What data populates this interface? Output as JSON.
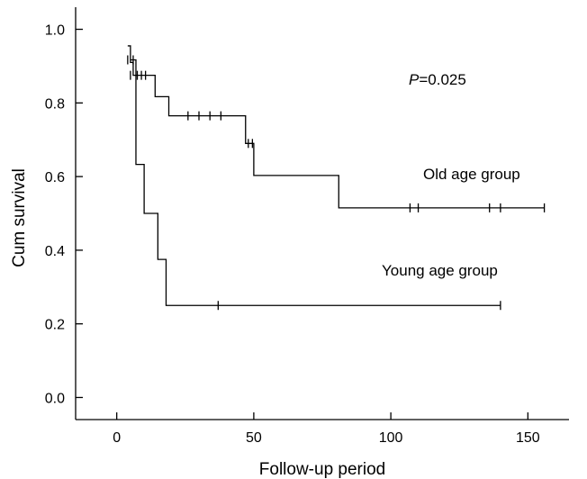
{
  "chart_data": {
    "type": "line",
    "subtype": "kaplan-meier-step",
    "xlabel": "Follow-up period",
    "ylabel": "Cum survival",
    "xlim": [
      -15,
      165
    ],
    "ylim": [
      -0.06,
      1.06
    ],
    "xticks": [
      0,
      50,
      100,
      150
    ],
    "xtick_labels": [
      "0",
      "50",
      "100",
      "150"
    ],
    "yticks": [
      0.0,
      0.2,
      0.4,
      0.6,
      0.8,
      1.0
    ],
    "ytick_labels": [
      "0.0",
      "0.2",
      "0.4",
      "0.6",
      "0.8",
      "1.0"
    ],
    "grid": false,
    "annotations": {
      "p_letter": "P",
      "p_rest": "=0.025",
      "old_label": "Old age group",
      "young_label": "Young age group"
    },
    "series": [
      {
        "name": "Old age group",
        "steps": [
          [
            4,
            0.955
          ],
          [
            5,
            0.91
          ],
          [
            6,
            0.875
          ],
          [
            14,
            0.817
          ],
          [
            19,
            0.765
          ],
          [
            47,
            0.69
          ],
          [
            50,
            0.603
          ],
          [
            81,
            0.515
          ],
          [
            156,
            0.515
          ]
        ],
        "censored": [
          [
            4,
            0.917
          ],
          [
            5,
            0.875
          ],
          [
            7.5,
            0.875
          ],
          [
            9,
            0.875
          ],
          [
            10.5,
            0.875
          ],
          [
            26,
            0.765
          ],
          [
            30,
            0.765
          ],
          [
            34,
            0.765
          ],
          [
            38,
            0.765
          ],
          [
            48,
            0.69
          ],
          [
            49.5,
            0.69
          ],
          [
            107,
            0.515
          ],
          [
            110,
            0.515
          ],
          [
            136,
            0.515
          ],
          [
            140,
            0.515
          ],
          [
            156,
            0.515
          ]
        ]
      },
      {
        "name": "Young age group",
        "steps": [
          [
            5,
            0.917
          ],
          [
            7,
            0.633
          ],
          [
            10,
            0.5
          ],
          [
            15,
            0.375
          ],
          [
            18,
            0.25
          ],
          [
            140,
            0.25
          ]
        ],
        "censored": [
          [
            6,
            0.917
          ],
          [
            37,
            0.25
          ],
          [
            140,
            0.25
          ]
        ]
      }
    ]
  }
}
